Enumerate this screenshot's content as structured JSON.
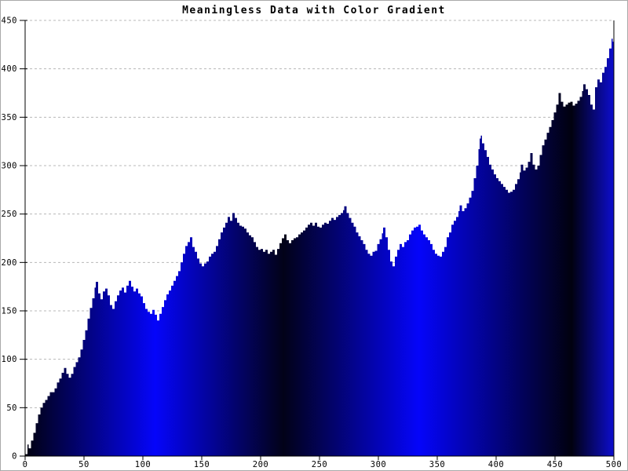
{
  "window": {
    "background": "#ffffff",
    "border_color": "#aaaaaa"
  },
  "chart_data": {
    "type": "area",
    "title": "Meaningless Data with Color Gradient",
    "xlabel": "",
    "ylabel": "",
    "xlim": [
      0,
      500
    ],
    "ylim": [
      0,
      450
    ],
    "x_ticks": [
      0,
      50,
      100,
      150,
      200,
      250,
      300,
      350,
      400,
      450,
      500
    ],
    "y_ticks": [
      0,
      50,
      100,
      150,
      200,
      250,
      300,
      350,
      400,
      450
    ],
    "grid": "horizontal-dashed",
    "grid_color": "#b8b8b8",
    "axis_color": "#000000",
    "label_color": "#000000",
    "legend_position": "none",
    "fill_gradient": {
      "direction": "horizontal",
      "stops": [
        {
          "offset": 0.0,
          "color": "#01010f"
        },
        {
          "offset": 0.221,
          "color": "#0505fa"
        },
        {
          "offset": 0.439,
          "color": "#020218"
        },
        {
          "offset": 0.669,
          "color": "#0505fa"
        },
        {
          "offset": 0.928,
          "color": "#01010f"
        },
        {
          "offset": 1.0,
          "color": "#0d0dce"
        }
      ]
    },
    "points": [
      [
        0,
        2
      ],
      [
        2,
        12
      ],
      [
        3,
        8
      ],
      [
        5,
        16
      ],
      [
        7,
        24
      ],
      [
        9,
        34
      ],
      [
        11,
        43
      ],
      [
        13,
        50
      ],
      [
        15,
        55
      ],
      [
        17,
        58
      ],
      [
        19,
        62
      ],
      [
        21,
        66
      ],
      [
        23,
        66
      ],
      [
        25,
        70
      ],
      [
        27,
        76
      ],
      [
        29,
        80
      ],
      [
        31,
        86
      ],
      [
        33,
        91
      ],
      [
        35,
        85
      ],
      [
        37,
        81
      ],
      [
        39,
        85
      ],
      [
        41,
        92
      ],
      [
        43,
        97
      ],
      [
        45,
        102
      ],
      [
        47,
        110
      ],
      [
        49,
        120
      ],
      [
        51,
        130
      ],
      [
        53,
        142
      ],
      [
        55,
        153
      ],
      [
        57,
        163
      ],
      [
        59,
        174
      ],
      [
        60,
        180
      ],
      [
        62,
        168
      ],
      [
        64,
        162
      ],
      [
        66,
        170
      ],
      [
        68,
        173
      ],
      [
        70,
        166
      ],
      [
        72,
        156
      ],
      [
        74,
        152
      ],
      [
        76,
        160
      ],
      [
        78,
        166
      ],
      [
        80,
        171
      ],
      [
        82,
        174
      ],
      [
        84,
        169
      ],
      [
        86,
        176
      ],
      [
        88,
        181
      ],
      [
        90,
        175
      ],
      [
        92,
        170
      ],
      [
        94,
        173
      ],
      [
        96,
        168
      ],
      [
        98,
        165
      ],
      [
        100,
        158
      ],
      [
        102,
        152
      ],
      [
        104,
        149
      ],
      [
        106,
        147
      ],
      [
        108,
        151
      ],
      [
        110,
        146
      ],
      [
        112,
        140
      ],
      [
        114,
        147
      ],
      [
        116,
        154
      ],
      [
        118,
        161
      ],
      [
        120,
        167
      ],
      [
        122,
        171
      ],
      [
        124,
        176
      ],
      [
        126,
        181
      ],
      [
        128,
        186
      ],
      [
        130,
        191
      ],
      [
        132,
        200
      ],
      [
        134,
        209
      ],
      [
        136,
        217
      ],
      [
        138,
        221
      ],
      [
        140,
        226
      ],
      [
        142,
        216
      ],
      [
        144,
        211
      ],
      [
        146,
        204
      ],
      [
        148,
        199
      ],
      [
        150,
        196
      ],
      [
        152,
        199
      ],
      [
        154,
        201
      ],
      [
        156,
        206
      ],
      [
        158,
        209
      ],
      [
        160,
        211
      ],
      [
        162,
        217
      ],
      [
        164,
        224
      ],
      [
        166,
        231
      ],
      [
        168,
        236
      ],
      [
        170,
        241
      ],
      [
        172,
        247
      ],
      [
        174,
        243
      ],
      [
        176,
        251
      ],
      [
        178,
        246
      ],
      [
        180,
        241
      ],
      [
        182,
        238
      ],
      [
        184,
        237
      ],
      [
        186,
        235
      ],
      [
        188,
        231
      ],
      [
        190,
        228
      ],
      [
        192,
        226
      ],
      [
        194,
        221
      ],
      [
        196,
        216
      ],
      [
        198,
        213
      ],
      [
        200,
        214
      ],
      [
        202,
        211
      ],
      [
        204,
        213
      ],
      [
        206,
        209
      ],
      [
        208,
        211
      ],
      [
        210,
        213
      ],
      [
        212,
        208
      ],
      [
        214,
        214
      ],
      [
        216,
        220
      ],
      [
        218,
        225
      ],
      [
        220,
        229
      ],
      [
        222,
        223
      ],
      [
        224,
        220
      ],
      [
        226,
        223
      ],
      [
        228,
        225
      ],
      [
        230,
        226
      ],
      [
        232,
        229
      ],
      [
        234,
        231
      ],
      [
        236,
        233
      ],
      [
        238,
        236
      ],
      [
        240,
        239
      ],
      [
        242,
        241
      ],
      [
        244,
        238
      ],
      [
        246,
        241
      ],
      [
        248,
        237
      ],
      [
        250,
        236
      ],
      [
        252,
        239
      ],
      [
        254,
        241
      ],
      [
        256,
        240
      ],
      [
        258,
        243
      ],
      [
        260,
        246
      ],
      [
        262,
        244
      ],
      [
        264,
        247
      ],
      [
        266,
        249
      ],
      [
        268,
        251
      ],
      [
        270,
        254
      ],
      [
        271,
        258
      ],
      [
        273,
        251
      ],
      [
        275,
        246
      ],
      [
        277,
        241
      ],
      [
        279,
        237
      ],
      [
        281,
        231
      ],
      [
        283,
        227
      ],
      [
        285,
        223
      ],
      [
        287,
        219
      ],
      [
        289,
        213
      ],
      [
        291,
        209
      ],
      [
        293,
        207
      ],
      [
        295,
        211
      ],
      [
        297,
        212
      ],
      [
        299,
        219
      ],
      [
        301,
        224
      ],
      [
        303,
        230
      ],
      [
        304,
        236
      ],
      [
        306,
        226
      ],
      [
        308,
        213
      ],
      [
        310,
        201
      ],
      [
        312,
        196
      ],
      [
        314,
        206
      ],
      [
        316,
        213
      ],
      [
        318,
        219
      ],
      [
        320,
        216
      ],
      [
        322,
        221
      ],
      [
        324,
        223
      ],
      [
        326,
        229
      ],
      [
        328,
        233
      ],
      [
        330,
        236
      ],
      [
        332,
        237
      ],
      [
        334,
        239
      ],
      [
        336,
        233
      ],
      [
        338,
        229
      ],
      [
        340,
        226
      ],
      [
        342,
        223
      ],
      [
        344,
        219
      ],
      [
        346,
        213
      ],
      [
        348,
        209
      ],
      [
        350,
        207
      ],
      [
        352,
        206
      ],
      [
        354,
        211
      ],
      [
        356,
        216
      ],
      [
        358,
        226
      ],
      [
        360,
        231
      ],
      [
        362,
        239
      ],
      [
        364,
        243
      ],
      [
        366,
        247
      ],
      [
        368,
        253
      ],
      [
        369,
        259
      ],
      [
        371,
        253
      ],
      [
        373,
        256
      ],
      [
        375,
        261
      ],
      [
        377,
        267
      ],
      [
        379,
        274
      ],
      [
        381,
        287
      ],
      [
        383,
        300
      ],
      [
        385,
        317
      ],
      [
        386,
        328
      ],
      [
        387,
        331
      ],
      [
        388,
        323
      ],
      [
        390,
        316
      ],
      [
        392,
        309
      ],
      [
        394,
        301
      ],
      [
        396,
        296
      ],
      [
        398,
        291
      ],
      [
        400,
        287
      ],
      [
        402,
        284
      ],
      [
        404,
        281
      ],
      [
        406,
        278
      ],
      [
        408,
        275
      ],
      [
        410,
        272
      ],
      [
        412,
        273
      ],
      [
        414,
        275
      ],
      [
        416,
        281
      ],
      [
        418,
        286
      ],
      [
        420,
        293
      ],
      [
        421,
        301
      ],
      [
        423,
        295
      ],
      [
        425,
        298
      ],
      [
        427,
        304
      ],
      [
        429,
        313
      ],
      [
        431,
        301
      ],
      [
        433,
        296
      ],
      [
        435,
        300
      ],
      [
        437,
        311
      ],
      [
        439,
        321
      ],
      [
        441,
        327
      ],
      [
        443,
        334
      ],
      [
        445,
        340
      ],
      [
        447,
        347
      ],
      [
        449,
        355
      ],
      [
        451,
        363
      ],
      [
        453,
        375
      ],
      [
        455,
        366
      ],
      [
        457,
        361
      ],
      [
        459,
        363
      ],
      [
        461,
        365
      ],
      [
        463,
        366
      ],
      [
        465,
        362
      ],
      [
        467,
        364
      ],
      [
        469,
        367
      ],
      [
        471,
        371
      ],
      [
        473,
        377
      ],
      [
        474,
        384
      ],
      [
        476,
        379
      ],
      [
        478,
        373
      ],
      [
        480,
        363
      ],
      [
        482,
        358
      ],
      [
        484,
        381
      ],
      [
        486,
        389
      ],
      [
        488,
        386
      ],
      [
        490,
        396
      ],
      [
        492,
        402
      ],
      [
        494,
        411
      ],
      [
        496,
        421
      ],
      [
        498,
        431
      ],
      [
        499,
        428
      ],
      [
        500,
        422
      ]
    ]
  }
}
